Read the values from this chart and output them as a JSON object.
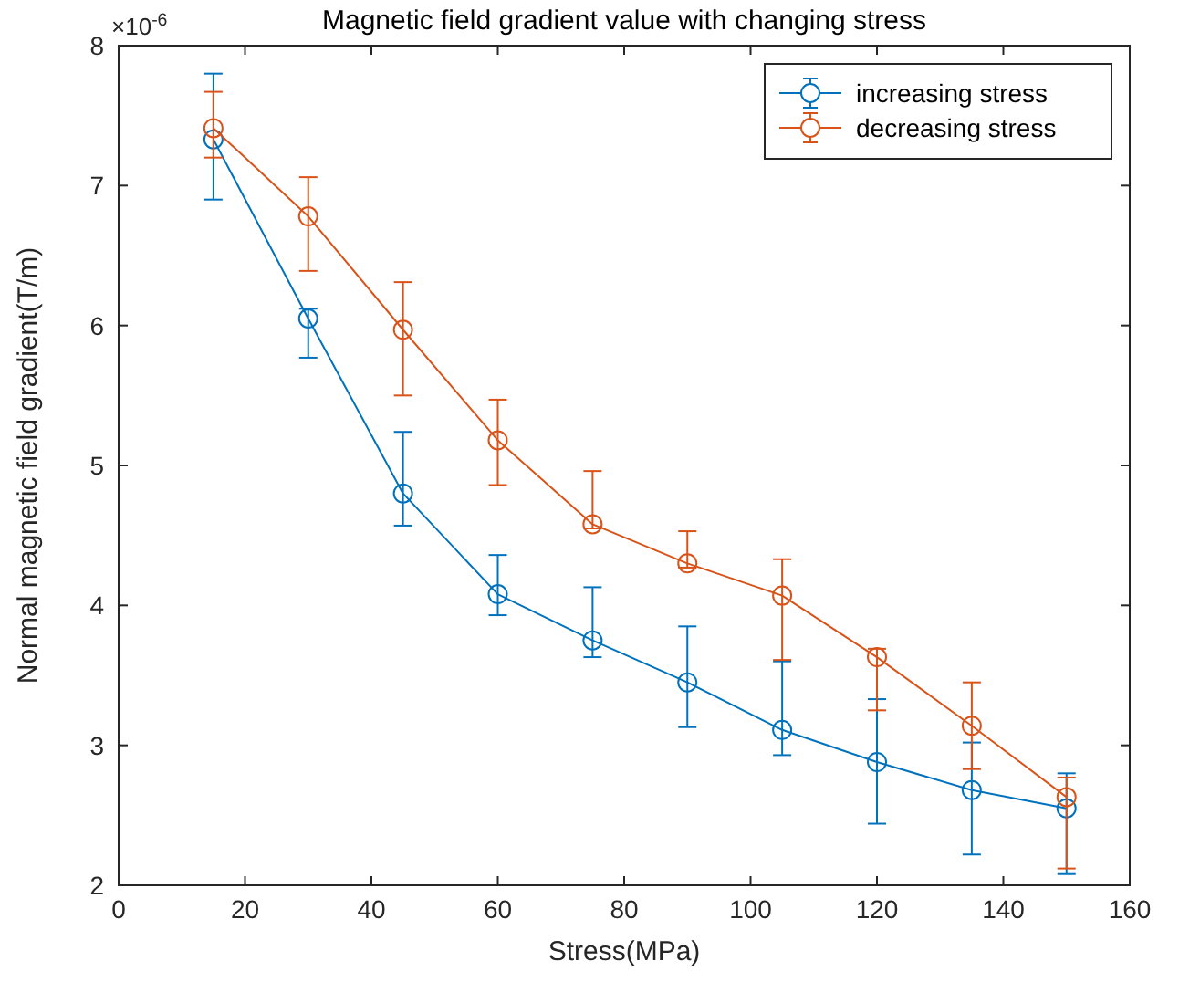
{
  "chart_data": {
    "type": "line",
    "title": "Magnetic field gradient value with changing stress",
    "xlabel": "Stress(MPa)",
    "ylabel": "Normal magnetic field gradient(T/m)",
    "annotations": [
      "×10$^{-6}$"
    ],
    "x": [
      15,
      30,
      45,
      60,
      75,
      90,
      105,
      120,
      135,
      150
    ],
    "xlim": [
      0,
      160
    ],
    "xticks": [
      0,
      20,
      40,
      60,
      80,
      100,
      120,
      140,
      160
    ],
    "ylim": [
      2,
      8
    ],
    "yticks": [
      2,
      3,
      4,
      5,
      6,
      7,
      8
    ],
    "grid": false,
    "legend": "top right",
    "marker": "circle",
    "line_style": "solid",
    "series": [
      {
        "name": "increasing stress",
        "color": "#0072bd",
        "values": [
          7.33,
          6.05,
          4.8,
          4.08,
          3.75,
          3.45,
          3.11,
          2.88,
          2.68,
          2.55
        ],
        "errors": [
          [
            6.9,
            7.8
          ],
          [
            5.77,
            6.12
          ],
          [
            4.57,
            5.24
          ],
          [
            3.93,
            4.36
          ],
          [
            3.63,
            4.13
          ],
          [
            3.13,
            3.85
          ],
          [
            2.93,
            3.6
          ],
          [
            2.44,
            3.33
          ],
          [
            2.22,
            3.02
          ],
          [
            2.08,
            2.8
          ]
        ]
      },
      {
        "name": "decreasing stress",
        "color": "#d95319",
        "values": [
          7.41,
          6.78,
          5.97,
          5.18,
          4.58,
          4.3,
          4.07,
          3.63,
          3.14,
          2.63
        ],
        "errors": [
          [
            7.2,
            7.67
          ],
          [
            6.39,
            7.06
          ],
          [
            5.5,
            6.31
          ],
          [
            4.86,
            5.47
          ],
          [
            4.55,
            4.96
          ],
          [
            4.27,
            4.53
          ],
          [
            3.61,
            4.33
          ],
          [
            3.25,
            3.69
          ],
          [
            2.83,
            3.45
          ],
          [
            2.12,
            2.77
          ]
        ]
      }
    ]
  }
}
